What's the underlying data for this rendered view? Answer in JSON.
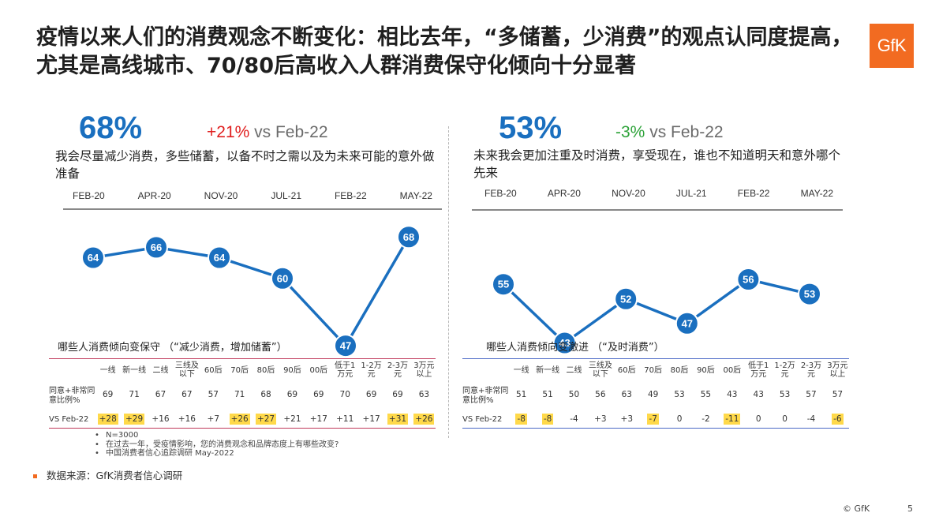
{
  "title": "疫情以来人们的消费观念不断变化：相比去年，“多储蓄，少消费”的观点认同度提高，尤其是高线城市、70/80后高收入人群消费保守化倾向十分显著",
  "logo": "GfK",
  "left": {
    "big": "68%",
    "delta": "+21%",
    "delta_suffix": " vs Feb-22",
    "statement": "我会尽量减少消费，多些储蓄，以备不时之需以及为未来可能的意外做准备",
    "table_title": "哪些人消费倾向变保守 （“减少消费，增加储蓄”）"
  },
  "right": {
    "big": "53%",
    "delta": "-3%",
    "delta_suffix": " vs Feb-22",
    "statement": "未来我会更加注重及时消费，享受现在，谁也不知道明天和意外哪个先来",
    "table_title": "哪些人消费倾向变激进 （“及时消费”）"
  },
  "colors": {
    "accent": "#1a6fbf",
    "up": "#e02020",
    "down": "#2ea33a",
    "highlight": "#ffd94a",
    "brand": "#f26b21"
  },
  "chart_data": [
    {
      "type": "line",
      "categories": [
        "FEB-20",
        "APR-20",
        "NOV-20",
        "JUL-21",
        "FEB-22",
        "MAY-22"
      ],
      "values": [
        64,
        66,
        64,
        60,
        47,
        68
      ],
      "ylim": [
        40,
        72
      ]
    },
    {
      "type": "line",
      "categories": [
        "FEB-20",
        "APR-20",
        "NOV-20",
        "JUL-21",
        "FEB-22",
        "MAY-22"
      ],
      "values": [
        55,
        43,
        52,
        47,
        56,
        53
      ],
      "ylim": [
        30,
        72
      ]
    },
    {
      "type": "table",
      "columns": [
        "一线",
        "新一线",
        "二线",
        "三线及以下",
        "60后",
        "70后",
        "80后",
        "90后",
        "00后",
        "低于1万元",
        "1-2万元",
        "2-3万元",
        "3万元以上"
      ],
      "row_labels": [
        "同意+非常同意比例%",
        "VS Feb-22"
      ],
      "rows": [
        [
          "69",
          "71",
          "67",
          "67",
          "57",
          "71",
          "68",
          "69",
          "69",
          "70",
          "69",
          "69",
          "63"
        ],
        [
          "+28",
          "+29",
          "+16",
          "+16",
          "+7",
          "+26",
          "+27",
          "+21",
          "+17",
          "+11",
          "+17",
          "+31",
          "+26"
        ]
      ],
      "highlighted": [
        0,
        1,
        5,
        6,
        11,
        12
      ]
    },
    {
      "type": "table",
      "columns": [
        "一线",
        "新一线",
        "二线",
        "三线及以下",
        "60后",
        "70后",
        "80后",
        "90后",
        "00后",
        "低于1万元",
        "1-2万元",
        "2-3万元",
        "3万元以上"
      ],
      "row_labels": [
        "同意+非常同意比例%",
        "VS Feb-22"
      ],
      "rows": [
        [
          "51",
          "51",
          "50",
          "56",
          "63",
          "49",
          "53",
          "55",
          "43",
          "43",
          "53",
          "57",
          "57"
        ],
        [
          "-8",
          "-8",
          "-4",
          "+3",
          "+3",
          "-7",
          "0",
          "-2",
          "-11",
          "0",
          "0",
          "-4",
          "-6"
        ]
      ],
      "highlighted": [
        0,
        1,
        5,
        8,
        12
      ]
    }
  ],
  "notes": [
    "N=3000",
    "在过去一年，受疫情影响，您的消费观念和品牌态度上有哪些改变?",
    "中国消费者信心追踪调研 May-2022"
  ],
  "source": "数据来源：GfK消费者信心调研",
  "copyright": "© GfK",
  "page_number": "5"
}
